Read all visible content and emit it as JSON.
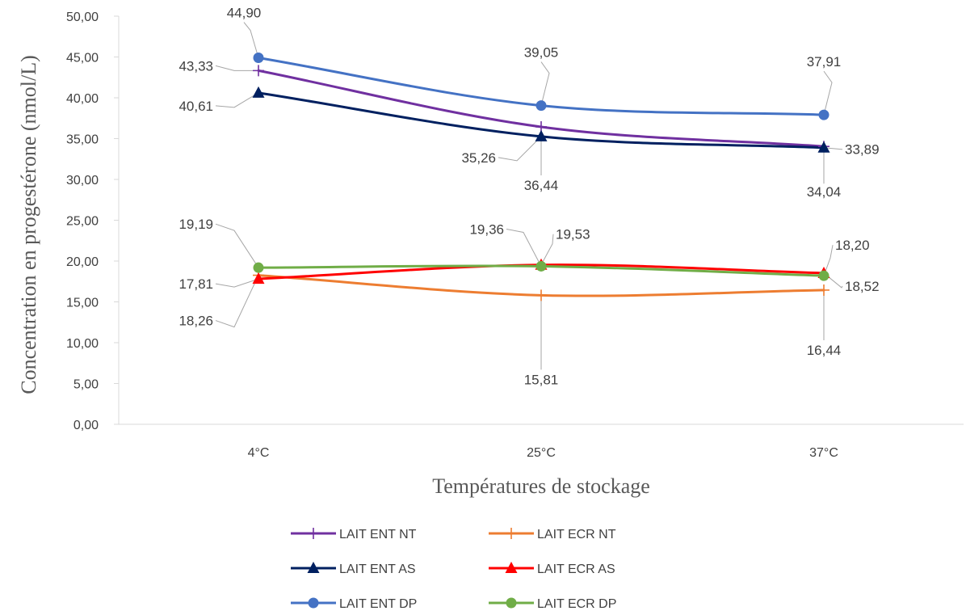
{
  "chart_data": {
    "type": "line",
    "title": "",
    "xlabel": "Températures de stockage",
    "ylabel": "Concentration en progestérone (nmol/L)",
    "categories": [
      "4°C",
      "25°C",
      "37°C"
    ],
    "ylim": [
      0,
      50
    ],
    "yticks": [
      "0,00",
      "5,00",
      "10,00",
      "15,00",
      "20,00",
      "25,00",
      "30,00",
      "35,00",
      "40,00",
      "45,00",
      "50,00"
    ],
    "grid": false,
    "legend_position": "bottom",
    "series": [
      {
        "name": "LAIT ENT NT",
        "values": [
          43.33,
          36.44,
          34.04
        ],
        "labels": [
          "43,33",
          "36,44",
          "34,04"
        ],
        "color": "#7030A0",
        "marker": "plus"
      },
      {
        "name": "LAIT ECR NT",
        "values": [
          18.26,
          15.81,
          16.44
        ],
        "labels": [
          "18,26",
          "15,81",
          "16,44"
        ],
        "color": "#ED7D31",
        "marker": "plus"
      },
      {
        "name": "LAIT ENT AS",
        "values": [
          40.61,
          35.26,
          33.89
        ],
        "labels": [
          "40,61",
          "35,26",
          "33,89"
        ],
        "color": "#002060",
        "marker": "triangle"
      },
      {
        "name": "LAIT ECR AS",
        "values": [
          17.81,
          19.53,
          18.52
        ],
        "labels": [
          "17,81",
          "19,53",
          "18,52"
        ],
        "color": "#FF0000",
        "marker": "triangle"
      },
      {
        "name": "LAIT ENT DP",
        "values": [
          44.9,
          39.05,
          37.91
        ],
        "labels": [
          "44,90",
          "39,05",
          "37,91"
        ],
        "color": "#4472C4",
        "marker": "circle"
      },
      {
        "name": "LAIT ECR DP",
        "values": [
          19.19,
          19.36,
          18.2
        ],
        "labels": [
          "19,19",
          "19,36",
          "18,20"
        ],
        "color": "#70AD47",
        "marker": "circle"
      }
    ]
  }
}
